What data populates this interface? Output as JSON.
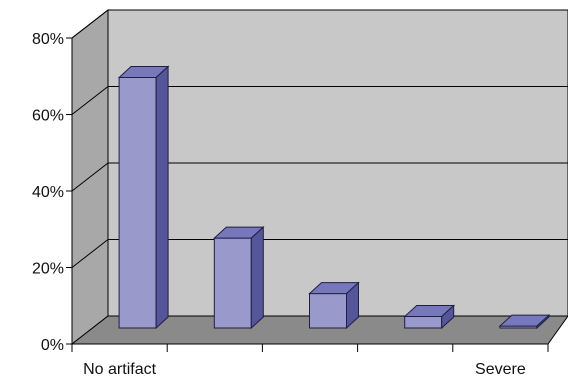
{
  "chart_data": {
    "type": "bar",
    "title": "",
    "xlabel": "",
    "ylabel": "",
    "ylim": [
      0,
      0.8
    ],
    "y_ticks": [
      "0%",
      "20%",
      "40%",
      "60%",
      "80%"
    ],
    "category_labels": [
      "No artifact",
      "",
      "",
      "",
      "Severe"
    ],
    "values": [
      0.655,
      0.235,
      0.09,
      0.03,
      0.005
    ],
    "grid": true,
    "legend": "none",
    "colors": {
      "bar_front": "#9999cc",
      "bar_top": "#7777bb",
      "bar_side": "#55559a",
      "bar_outline": "#1f1f44",
      "wall": "#c8c8c8",
      "side_wall": "#a8a8a8",
      "floor": "#8a8a8a",
      "grid": "#000000"
    }
  }
}
